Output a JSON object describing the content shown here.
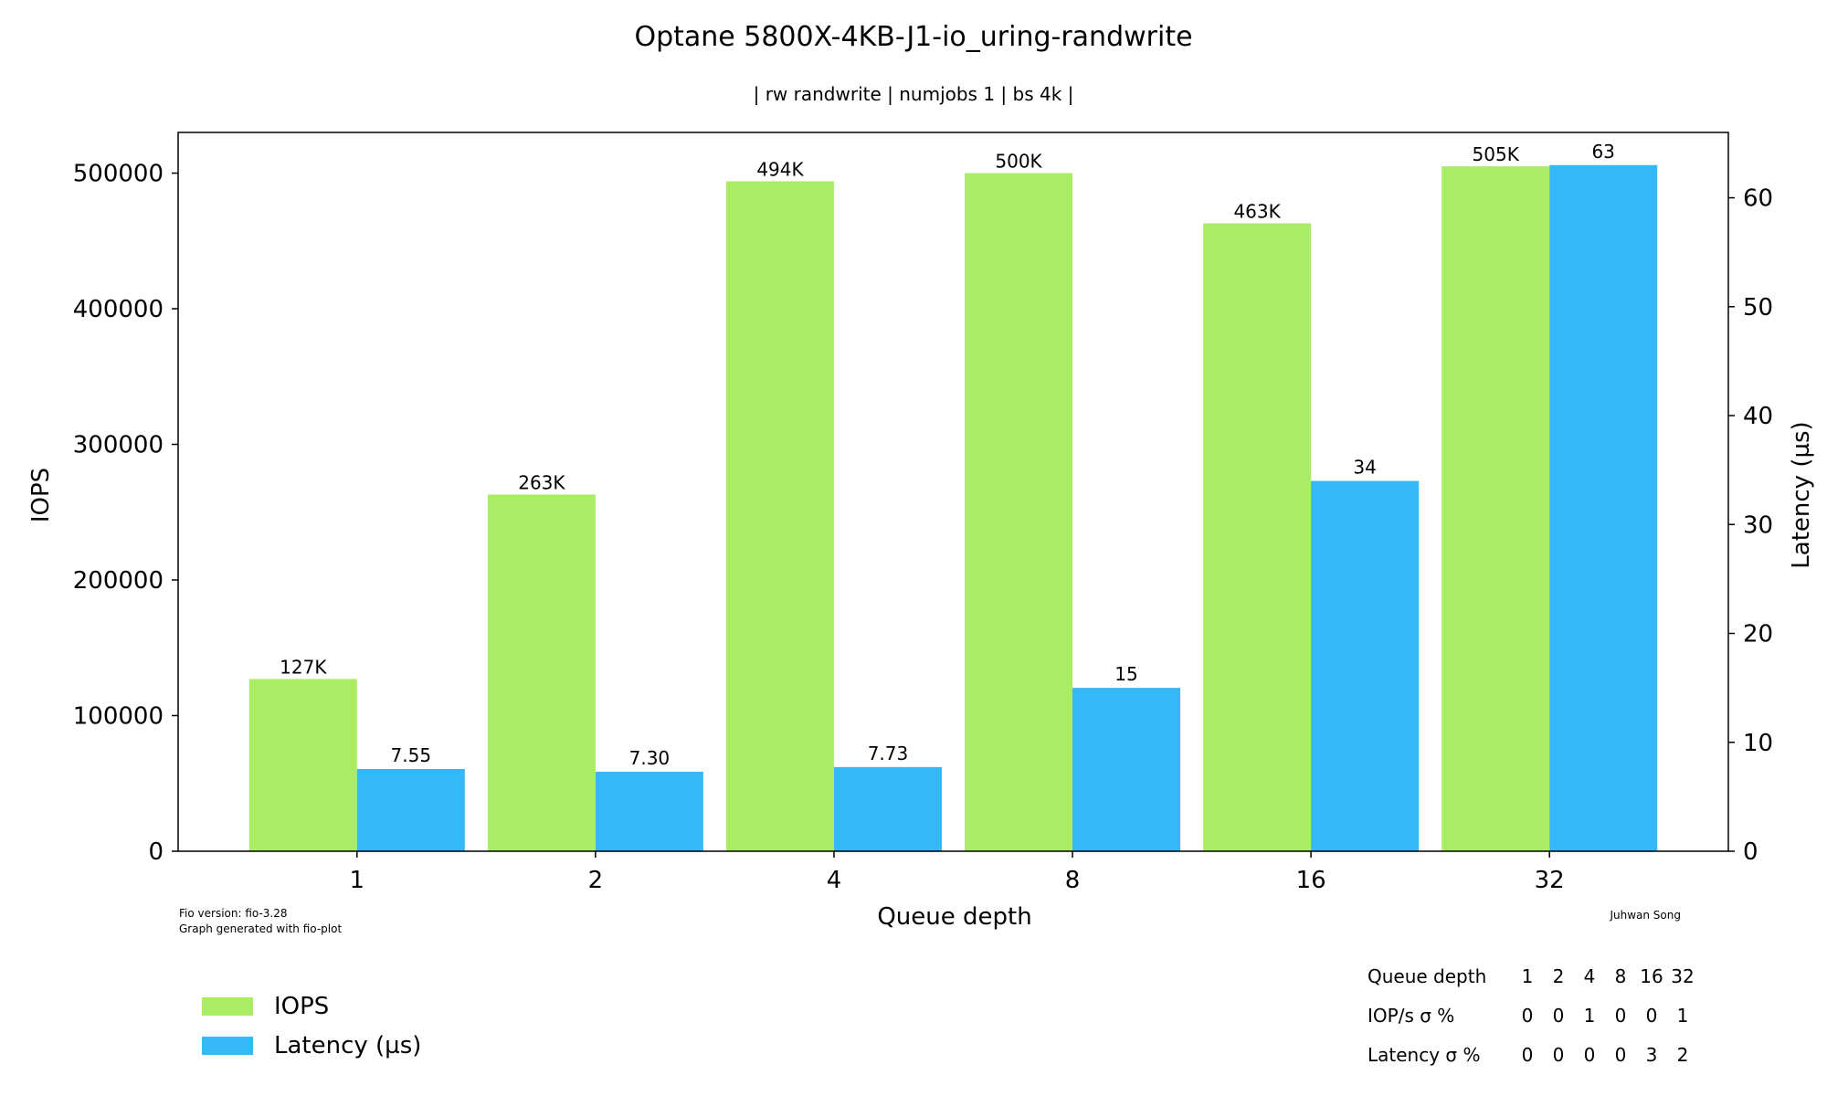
{
  "chart_data": {
    "type": "bar",
    "title": "Optane 5800X-4KB-J1-io_uring-randwrite",
    "subtitle": "| rw randwrite | numjobs 1 | bs 4k |",
    "xlabel": "Queue depth",
    "ylabel": "IOPS",
    "y2label": "Latency (µs)",
    "categories": [
      "1",
      "2",
      "4",
      "8",
      "16",
      "32"
    ],
    "ylim": [
      0,
      530000
    ],
    "y2lim": [
      0,
      66
    ],
    "yticks": [
      "0",
      "100000",
      "200000",
      "300000",
      "400000",
      "500000"
    ],
    "y2ticks": [
      "0",
      "10",
      "20",
      "30",
      "40",
      "50",
      "60"
    ],
    "series": [
      {
        "name": "IOPS",
        "axis": "left",
        "color": "#aaed64",
        "values": [
          127000,
          263000,
          494000,
          500000,
          463000,
          505000
        ],
        "labels": [
          "127K",
          "263K",
          "494K",
          "500K",
          "463K",
          "505K"
        ]
      },
      {
        "name": "Latency (µs)",
        "axis": "right",
        "color": "#35b8f7",
        "values": [
          7.55,
          7.3,
          7.73,
          15,
          34,
          63
        ],
        "labels": [
          "7.55",
          "7.30",
          "7.73",
          "15",
          "34",
          "63"
        ]
      }
    ],
    "legend": "bottom-left",
    "grid": false
  },
  "footnote": {
    "lines": [
      "Fio version: fio-3.28",
      "Graph generated with fio-plot"
    ],
    "author": "Juhwan Song"
  },
  "stddev_table": {
    "rows": [
      {
        "label": "Queue depth",
        "cells": [
          "1",
          "2",
          "4",
          "8",
          "16",
          "32"
        ]
      },
      {
        "label": "IOP/s σ %",
        "cells": [
          "0",
          "0",
          "1",
          "0",
          "0",
          "1"
        ]
      },
      {
        "label": "Latency σ %",
        "cells": [
          "0",
          "0",
          "0",
          "0",
          "3",
          "2"
        ]
      }
    ]
  }
}
